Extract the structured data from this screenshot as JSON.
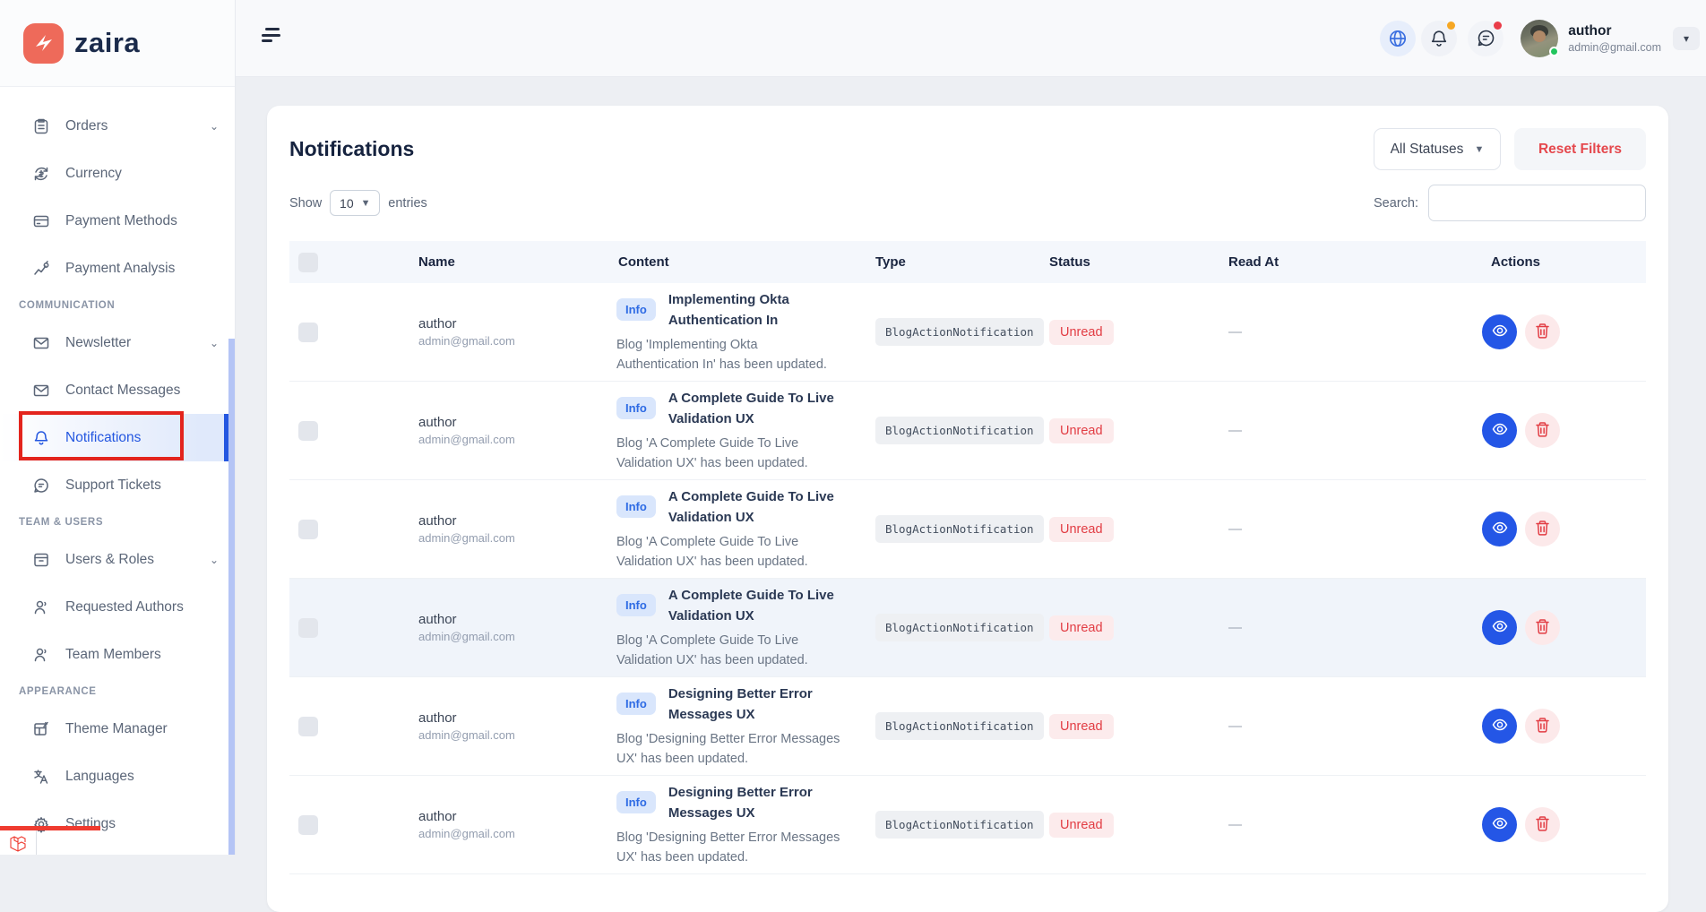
{
  "brand": {
    "name": "zaira"
  },
  "topbar": {
    "user_name": "author",
    "user_email": "admin@gmail.com",
    "icons": [
      "globe-icon",
      "bell-icon",
      "chat-icon"
    ]
  },
  "sidebar": {
    "sections": [
      {
        "label": "",
        "items": [
          {
            "id": "orders",
            "icon": "orders-icon",
            "label": "Orders",
            "chevron": true
          },
          {
            "id": "currency",
            "icon": "currency-icon",
            "label": "Currency"
          },
          {
            "id": "payment-methods",
            "icon": "card-icon",
            "label": "Payment Methods"
          },
          {
            "id": "payment-analysis",
            "icon": "analysis-icon",
            "label": "Payment Analysis"
          }
        ]
      },
      {
        "label": "COMMUNICATION",
        "items": [
          {
            "id": "newsletter",
            "icon": "envelope-icon",
            "label": "Newsletter",
            "chevron": true
          },
          {
            "id": "contact-messages",
            "icon": "envelope-icon",
            "label": "Contact Messages"
          },
          {
            "id": "notifications",
            "icon": "bell-icon",
            "label": "Notifications",
            "active": true
          },
          {
            "id": "support-tickets",
            "icon": "chat-icon",
            "label": "Support Tickets"
          }
        ]
      },
      {
        "label": "TEAM & USERS",
        "items": [
          {
            "id": "users-roles",
            "icon": "archive-icon",
            "label": "Users & Roles",
            "chevron": true
          },
          {
            "id": "requested-authors",
            "icon": "person-icon",
            "label": "Requested Authors"
          },
          {
            "id": "team-members",
            "icon": "person-icon",
            "label": "Team Members"
          }
        ]
      },
      {
        "label": "APPEARANCE",
        "items": [
          {
            "id": "theme-manager",
            "icon": "theme-icon",
            "label": "Theme Manager"
          },
          {
            "id": "languages",
            "icon": "translate-icon",
            "label": "Languages"
          },
          {
            "id": "settings",
            "icon": "gear-icon",
            "label": "Settings"
          }
        ]
      }
    ]
  },
  "page": {
    "title": "Notifications",
    "status_filter_value": "All Statuses",
    "reset_button": "Reset Filters",
    "show_label": "Show",
    "page_size": "10",
    "entries_label": "entries",
    "search_label": "Search:",
    "search_value": ""
  },
  "table": {
    "headers": [
      "",
      "Name",
      "Content",
      "Type",
      "Status",
      "Read At",
      "Actions"
    ],
    "rows": [
      {
        "name": "author",
        "email": "admin@gmail.com",
        "badge": "Info",
        "title": "Implementing Okta Authentication In",
        "desc": "Blog 'Implementing Okta Authentication In' has been updated.",
        "type": "BlogActionNotification",
        "status": "Unread",
        "read_at": "—",
        "highlighted": false
      },
      {
        "name": "author",
        "email": "admin@gmail.com",
        "badge": "Info",
        "title": "A Complete Guide To Live Validation UX",
        "desc": "Blog 'A Complete Guide To Live Validation UX' has been updated.",
        "type": "BlogActionNotification",
        "status": "Unread",
        "read_at": "—",
        "highlighted": false
      },
      {
        "name": "author",
        "email": "admin@gmail.com",
        "badge": "Info",
        "title": "A Complete Guide To Live Validation UX",
        "desc": "Blog 'A Complete Guide To Live Validation UX' has been updated.",
        "type": "BlogActionNotification",
        "status": "Unread",
        "read_at": "—",
        "highlighted": false
      },
      {
        "name": "author",
        "email": "admin@gmail.com",
        "badge": "Info",
        "title": "A Complete Guide To Live Validation UX",
        "desc": "Blog 'A Complete Guide To Live Validation UX' has been updated.",
        "type": "BlogActionNotification",
        "status": "Unread",
        "read_at": "—",
        "highlighted": true
      },
      {
        "name": "author",
        "email": "admin@gmail.com",
        "badge": "Info",
        "title": "Designing Better Error Messages UX",
        "desc": "Blog 'Designing Better Error Messages UX' has been updated.",
        "type": "BlogActionNotification",
        "status": "Unread",
        "read_at": "—",
        "highlighted": false
      },
      {
        "name": "author",
        "email": "admin@gmail.com",
        "badge": "Info",
        "title": "Designing Better Error Messages UX",
        "desc": "Blog 'Designing Better Error Messages UX' has been updated.",
        "type": "BlogActionNotification",
        "status": "Unread",
        "read_at": "—",
        "highlighted": false
      }
    ]
  },
  "colors": {
    "accent_blue": "#2457e0",
    "brand_coral": "#ee6a5a",
    "danger_red": "#e5484d",
    "annotation_red": "#e3241d",
    "status_unread_bg": "#fcebec",
    "header_band": "#f4f7fc"
  }
}
